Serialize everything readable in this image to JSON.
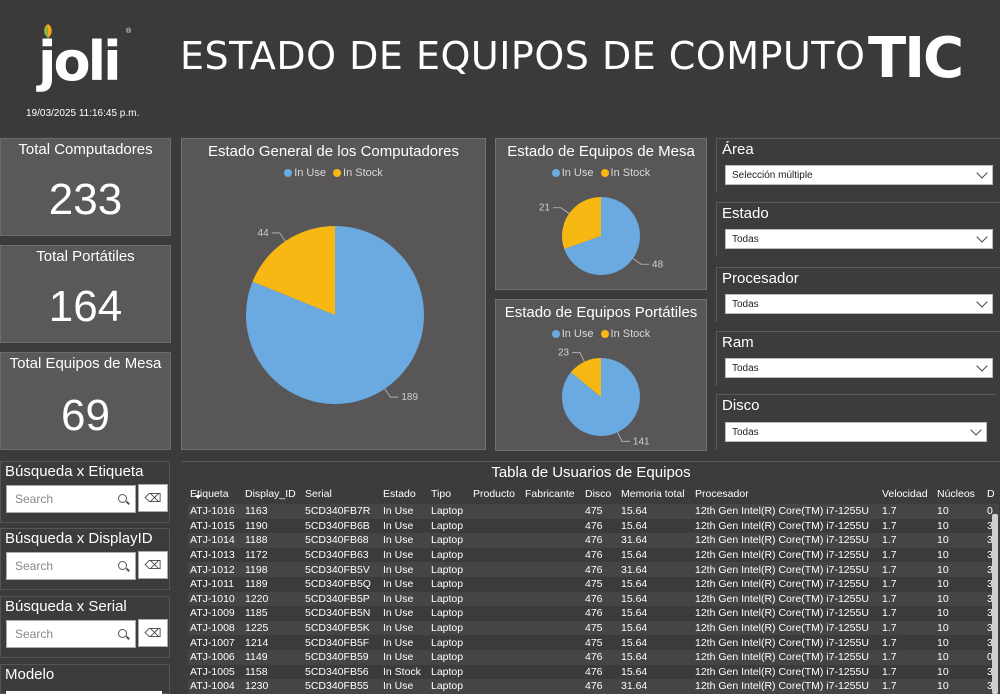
{
  "header": {
    "brand_left": "joli",
    "brand_left_mark": "®",
    "title": "ESTADO DE EQUIPOS DE COMPUTO",
    "brand_right": "TIC",
    "timestamp": "19/03/2025 11:16:45 p.m."
  },
  "kpis": [
    {
      "label": "Total Computadores",
      "value": "233"
    },
    {
      "label": "Total Portátiles",
      "value": "164"
    },
    {
      "label": "Total Equipos de Mesa",
      "value": "69"
    }
  ],
  "colors": {
    "in_use": "#6aaae0",
    "in_stock": "#f8b814"
  },
  "chart_data": [
    {
      "type": "pie",
      "title": "Estado General de los Computadores",
      "categories": [
        "In Use",
        "In Stock"
      ],
      "values": [
        189,
        44
      ],
      "legend": "top"
    },
    {
      "type": "pie",
      "title": "Estado de Equipos de Mesa",
      "categories": [
        "In Use",
        "In Stock"
      ],
      "values": [
        48,
        21
      ],
      "legend": "top"
    },
    {
      "type": "pie",
      "title": "Estado de Equipos Portátiles",
      "categories": [
        "In Use",
        "In Stock"
      ],
      "values": [
        141,
        23
      ],
      "legend": "top"
    }
  ],
  "legend_labels": {
    "in_use": "In Use",
    "in_stock": "In Stock"
  },
  "slicers": [
    {
      "label": "Área",
      "value": "Selección múltiple"
    },
    {
      "label": "Estado",
      "value": "Todas"
    },
    {
      "label": "Procesador",
      "value": "Todas"
    },
    {
      "label": "Ram",
      "value": "Todas"
    },
    {
      "label": "Disco",
      "value": "Todas"
    }
  ],
  "searches": [
    {
      "label": "Búsqueda x Etiqueta",
      "placeholder": "Search"
    },
    {
      "label": "Búsqueda x DisplayID",
      "placeholder": "Search"
    },
    {
      "label": "Búsqueda x Serial",
      "placeholder": "Search"
    },
    {
      "label": "Modelo"
    }
  ],
  "table": {
    "title": "Tabla de Usuarios de Equipos",
    "columns": [
      "Etiqueta",
      "Display_ID",
      "Serial",
      "Estado",
      "Tipo",
      "Producto",
      "Fabricante",
      "Disco",
      "Memoria total",
      "Procesador",
      "Velocidad",
      "Núcleos",
      "D"
    ],
    "rows": [
      [
        "ATJ-1016",
        "1163",
        "5CD340FB7R",
        "In Use",
        "Laptop",
        "",
        "",
        "475",
        "15.64",
        "12th Gen Intel(R) Core(TM) i7-1255U",
        "1.7",
        "10",
        "0"
      ],
      [
        "ATJ-1015",
        "1190",
        "5CD340FB6B",
        "In Use",
        "Laptop",
        "",
        "",
        "476",
        "15.64",
        "12th Gen Intel(R) Core(TM) i7-1255U",
        "1.7",
        "10",
        "3"
      ],
      [
        "ATJ-1014",
        "1188",
        "5CD340FB68",
        "In Use",
        "Laptop",
        "",
        "",
        "476",
        "31.64",
        "12th Gen Intel(R) Core(TM) i7-1255U",
        "1.7",
        "10",
        "3"
      ],
      [
        "ATJ-1013",
        "1172",
        "5CD340FB63",
        "In Use",
        "Laptop",
        "",
        "",
        "476",
        "15.64",
        "12th Gen Intel(R) Core(TM) i7-1255U",
        "1.7",
        "10",
        "3"
      ],
      [
        "ATJ-1012",
        "1198",
        "5CD340FB5V",
        "In Use",
        "Laptop",
        "",
        "",
        "476",
        "31.64",
        "12th Gen Intel(R) Core(TM) i7-1255U",
        "1.7",
        "10",
        "3"
      ],
      [
        "ATJ-1011",
        "1189",
        "5CD340FB5Q",
        "In Use",
        "Laptop",
        "",
        "",
        "475",
        "15.64",
        "12th Gen Intel(R) Core(TM) i7-1255U",
        "1.7",
        "10",
        "3"
      ],
      [
        "ATJ-1010",
        "1220",
        "5CD340FB5P",
        "In Use",
        "Laptop",
        "",
        "",
        "476",
        "15.64",
        "12th Gen Intel(R) Core(TM) i7-1255U",
        "1.7",
        "10",
        "3"
      ],
      [
        "ATJ-1009",
        "1185",
        "5CD340FB5N",
        "In Use",
        "Laptop",
        "",
        "",
        "476",
        "15.64",
        "12th Gen Intel(R) Core(TM) i7-1255U",
        "1.7",
        "10",
        "3"
      ],
      [
        "ATJ-1008",
        "1225",
        "5CD340FB5K",
        "In Use",
        "Laptop",
        "",
        "",
        "475",
        "15.64",
        "12th Gen Intel(R) Core(TM) i7-1255U",
        "1.7",
        "10",
        "3"
      ],
      [
        "ATJ-1007",
        "1214",
        "5CD340FB5F",
        "In Use",
        "Laptop",
        "",
        "",
        "475",
        "15.64",
        "12th Gen Intel(R) Core(TM) i7-1255U",
        "1.7",
        "10",
        "3"
      ],
      [
        "ATJ-1006",
        "1149",
        "5CD340FB59",
        "In Use",
        "Laptop",
        "",
        "",
        "476",
        "15.64",
        "12th Gen Intel(R) Core(TM) i7-1255U",
        "1.7",
        "10",
        "0"
      ],
      [
        "ATJ-1005",
        "1158",
        "5CD340FB56",
        "In Stock",
        "Laptop",
        "",
        "",
        "476",
        "15.64",
        "12th Gen Intel(R) Core(TM) i7-1255U",
        "1.7",
        "10",
        "3"
      ],
      [
        "ATJ-1004",
        "1230",
        "5CD340FB55",
        "In Use",
        "Laptop",
        "",
        "",
        "476",
        "31.64",
        "12th Gen Intel(R) Core(TM) i7-1255U",
        "1.7",
        "10",
        "3"
      ]
    ]
  }
}
